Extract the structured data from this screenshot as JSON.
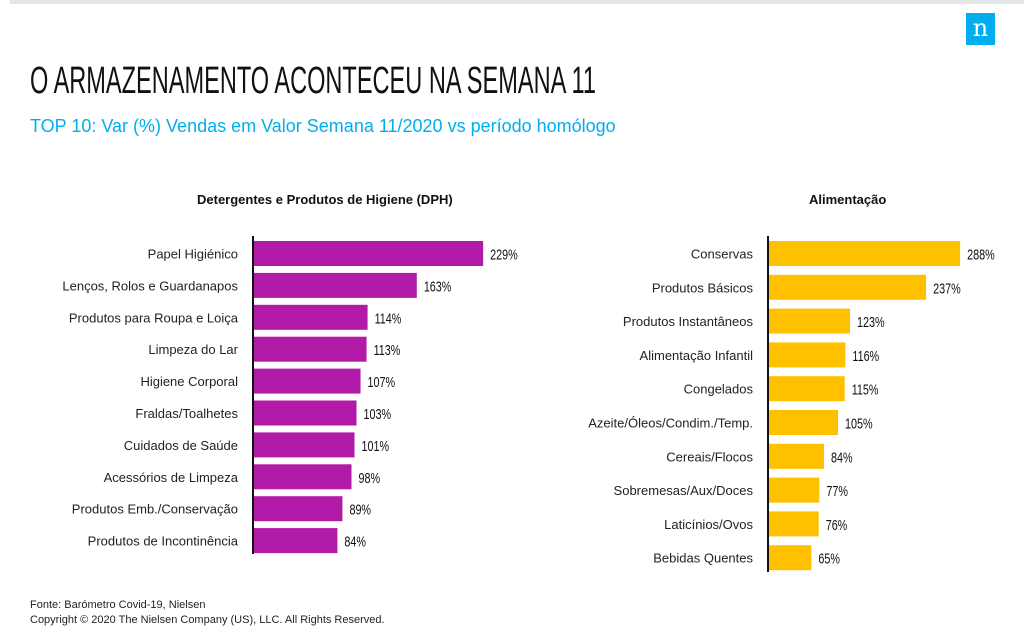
{
  "header": {
    "logo": "n",
    "title": "O ARMAZENAMENTO ACONTECEU NA SEMANA 11",
    "subtitle": "TOP 10: Var (%) Vendas em Valor Semana 11/2020 vs período homólogo"
  },
  "chart_data": [
    {
      "type": "bar",
      "orientation": "horizontal",
      "title": "Detergentes e Produtos de Higiene (DPH)",
      "color": "#b01aa7",
      "categories": [
        "Papel Higiénico",
        "Lenços, Rolos e Guardanapos",
        "Produtos para Roupa e Loiça",
        "Limpeza do Lar",
        "Higiene Corporal",
        "Fraldas/Toalhetes",
        "Cuidados de Saúde",
        "Acessórios de Limpeza",
        "Produtos Emb./Conservação",
        "Produtos de Incontinência"
      ],
      "values": [
        229,
        163,
        114,
        113,
        107,
        103,
        101,
        98,
        89,
        84
      ],
      "unit": "%"
    },
    {
      "type": "bar",
      "orientation": "horizontal",
      "title": "Alimentação",
      "color": "#ffc000",
      "categories": [
        "Conservas",
        "Produtos Básicos",
        "Produtos Instantâneos",
        "Alimentação Infantil",
        "Congelados",
        "Azeite/Óleos/Condim./Temp.",
        "Cereais/Flocos",
        "Sobremesas/Aux/Doces",
        "Laticínios/Ovos",
        "Bebidas Quentes"
      ],
      "values": [
        288,
        237,
        123,
        116,
        115,
        105,
        84,
        77,
        76,
        65
      ],
      "unit": "%"
    }
  ],
  "footer": {
    "source": "Fonte: Barómetro Covid-19, Nielsen",
    "copyright": "Copyright © 2020 The Nielsen Company (US), LLC. All Rights Reserved."
  }
}
